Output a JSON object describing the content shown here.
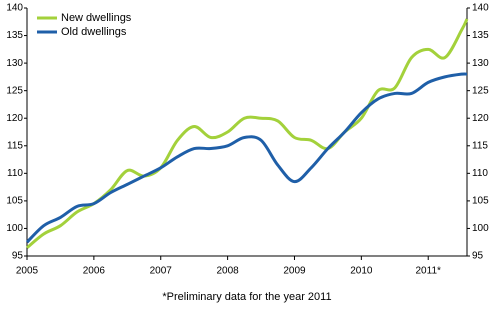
{
  "chart_data": {
    "type": "line",
    "footnote": "*Preliminary data for the year 2011",
    "x": [
      2005,
      2005.25,
      2005.5,
      2005.75,
      2006,
      2006.25,
      2006.5,
      2006.75,
      2007,
      2007.25,
      2007.5,
      2007.75,
      2008,
      2008.25,
      2008.5,
      2008.75,
      2009,
      2009.25,
      2009.5,
      2009.75,
      2010,
      2010.25,
      2010.5,
      2010.75,
      2011,
      2011.25,
      2011.5,
      2011.58
    ],
    "series": [
      {
        "name": "New dwellings",
        "color": "#a3d13b",
        "values": [
          96.5,
          99,
          100.5,
          103,
          104.5,
          107,
          110.5,
          109.5,
          111,
          116,
          118.5,
          116.5,
          117.5,
          120,
          120,
          119.5,
          116.5,
          116,
          114.5,
          117.5,
          120,
          125,
          125.5,
          131,
          132.5,
          131,
          136,
          138
        ]
      },
      {
        "name": "Old dwellings",
        "color": "#1f5fa8",
        "values": [
          97.5,
          100.5,
          102,
          104,
          104.5,
          106.5,
          108,
          109.5,
          111,
          113,
          114.5,
          114.5,
          115,
          116.5,
          116,
          111.5,
          108.5,
          111,
          114.5,
          117.5,
          121,
          123.5,
          124.5,
          124.5,
          126.5,
          127.5,
          128,
          128
        ]
      }
    ],
    "xlim": [
      2005,
      2011.58
    ],
    "xticks": [
      2005,
      2006,
      2007,
      2008,
      2009,
      2010,
      {
        "value": 2011,
        "label": "2011*"
      }
    ],
    "ylim": [
      95,
      140
    ],
    "yticks": [
      95,
      100,
      105,
      110,
      115,
      120,
      125,
      130,
      135,
      140
    ],
    "y2lim": [
      95,
      140
    ],
    "y2ticks": [
      95,
      100,
      105,
      110,
      115,
      120,
      125,
      130,
      135,
      140
    ],
    "legend": "upper left"
  }
}
